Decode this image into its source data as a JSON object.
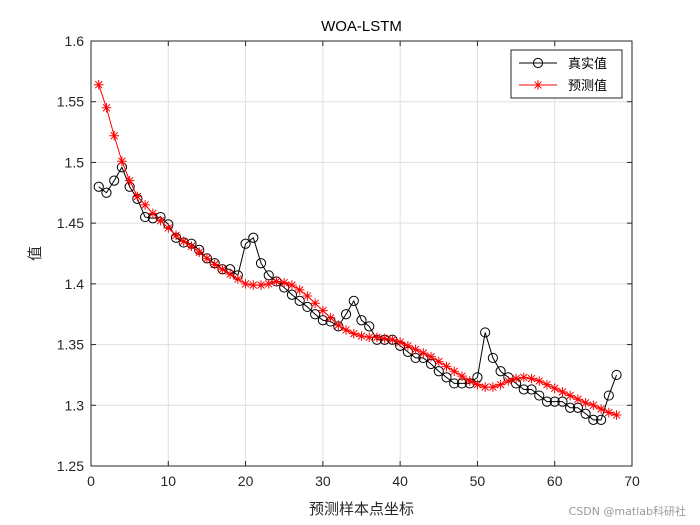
{
  "chart_data": {
    "type": "line",
    "title": "WOA-LSTM",
    "xlabel": "预测样本点坐标",
    "ylabel": "值",
    "xlim": [
      0,
      70
    ],
    "ylim": [
      1.25,
      1.6
    ],
    "xticks": [
      0,
      10,
      20,
      30,
      40,
      50,
      60,
      70
    ],
    "yticks": [
      1.25,
      1.3,
      1.35,
      1.4,
      1.45,
      1.5,
      1.55,
      1.6
    ],
    "ytick_labels": [
      "1.25",
      "1.3",
      "1.35",
      "1.4",
      "1.45",
      "1.5",
      "1.55",
      "1.6"
    ],
    "grid": true,
    "legend_position": "top-right",
    "x": [
      1,
      2,
      3,
      4,
      5,
      6,
      7,
      8,
      9,
      10,
      11,
      12,
      13,
      14,
      15,
      16,
      17,
      18,
      19,
      20,
      21,
      22,
      23,
      24,
      25,
      26,
      27,
      28,
      29,
      30,
      31,
      32,
      33,
      34,
      35,
      36,
      37,
      38,
      39,
      40,
      41,
      42,
      43,
      44,
      45,
      46,
      47,
      48,
      49,
      50,
      51,
      52,
      53,
      54,
      55,
      56,
      57,
      58,
      59,
      60,
      61,
      62,
      63,
      64,
      65,
      66,
      67,
      68
    ],
    "series": [
      {
        "name": "真实值",
        "color": "#000000",
        "marker": "circle",
        "values": [
          1.48,
          1.475,
          1.485,
          1.496,
          1.48,
          1.47,
          1.455,
          1.454,
          1.455,
          1.449,
          1.438,
          1.434,
          1.433,
          1.428,
          1.421,
          1.417,
          1.412,
          1.412,
          1.407,
          1.433,
          1.438,
          1.417,
          1.407,
          1.402,
          1.397,
          1.391,
          1.386,
          1.381,
          1.375,
          1.37,
          1.369,
          1.365,
          1.375,
          1.386,
          1.37,
          1.365,
          1.354,
          1.354,
          1.354,
          1.349,
          1.344,
          1.339,
          1.339,
          1.334,
          1.328,
          1.323,
          1.318,
          1.318,
          1.318,
          1.323,
          1.36,
          1.339,
          1.328,
          1.323,
          1.318,
          1.313,
          1.313,
          1.308,
          1.303,
          1.303,
          1.303,
          1.298,
          1.298,
          1.293,
          1.288,
          1.288,
          1.308,
          1.325
        ]
      },
      {
        "name": "预测值",
        "color": "#ff0000",
        "marker": "asterisk",
        "values": [
          1.564,
          1.545,
          1.522,
          1.501,
          1.485,
          1.472,
          1.465,
          1.458,
          1.452,
          1.446,
          1.44,
          1.435,
          1.431,
          1.426,
          1.421,
          1.416,
          1.412,
          1.408,
          1.404,
          1.4,
          1.399,
          1.399,
          1.4,
          1.402,
          1.401,
          1.399,
          1.395,
          1.39,
          1.384,
          1.378,
          1.372,
          1.366,
          1.362,
          1.359,
          1.357,
          1.356,
          1.356,
          1.355,
          1.354,
          1.352,
          1.349,
          1.346,
          1.343,
          1.34,
          1.336,
          1.332,
          1.328,
          1.324,
          1.32,
          1.317,
          1.315,
          1.315,
          1.317,
          1.32,
          1.322,
          1.323,
          1.322,
          1.32,
          1.317,
          1.314,
          1.311,
          1.308,
          1.305,
          1.302,
          1.3,
          1.297,
          1.294,
          1.292
        ]
      }
    ]
  },
  "watermark": "CSDN @matlab科研社"
}
